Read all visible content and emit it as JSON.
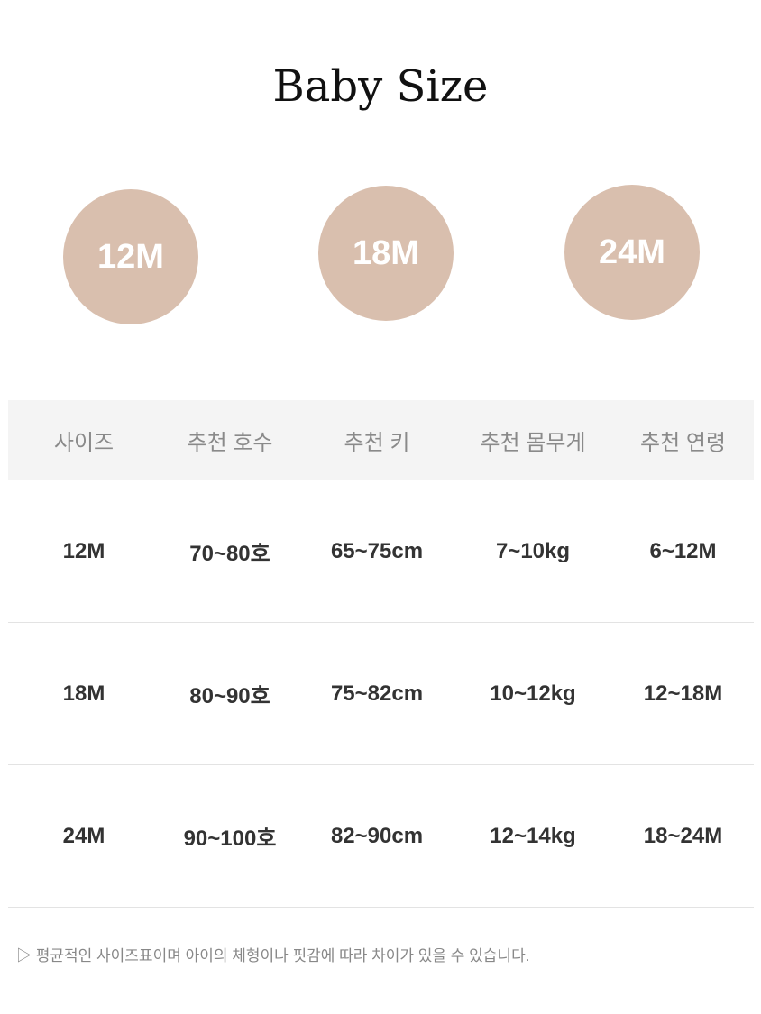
{
  "title": "Baby Size",
  "accent_color": "#d9bfae",
  "sizes": [
    "12M",
    "18M",
    "24M"
  ],
  "table": {
    "headers": [
      "사이즈",
      "추천 호수",
      "추천 키",
      "추천 몸무게",
      "추천 연령"
    ],
    "rows": [
      [
        "12M",
        "70~80호",
        "65~75cm",
        "7~10kg",
        "6~12M"
      ],
      [
        "18M",
        "80~90호",
        "75~82cm",
        "10~12kg",
        "12~18M"
      ],
      [
        "24M",
        "90~100호",
        "82~90cm",
        "12~14kg",
        "18~24M"
      ]
    ]
  },
  "note": "▷ 평균적인 사이즈표이며 아이의 체형이나 핏감에 따라 차이가 있을 수 있습니다."
}
